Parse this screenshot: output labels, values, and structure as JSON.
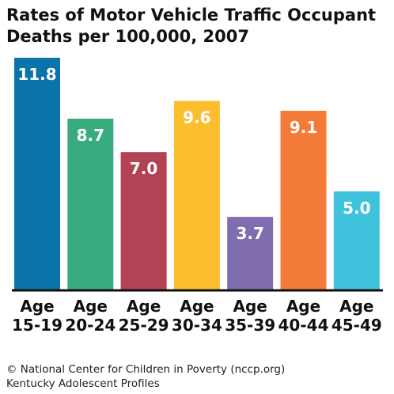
{
  "chart_data": {
    "type": "bar",
    "title_lines": [
      "Rates of Motor Vehicle Traffic Occupant",
      "Deaths per 100,000, 2007"
    ],
    "categories": [
      {
        "line1": "Age",
        "line2": "15-19"
      },
      {
        "line1": "Age",
        "line2": "20-24"
      },
      {
        "line1": "Age",
        "line2": "25-29"
      },
      {
        "line1": "Age",
        "line2": "30-34"
      },
      {
        "line1": "Age",
        "line2": "35-39"
      },
      {
        "line1": "Age",
        "line2": "40-44"
      },
      {
        "line1": "Age",
        "line2": "45-49"
      }
    ],
    "values": [
      11.8,
      8.7,
      7.0,
      9.6,
      3.7,
      9.1,
      5.0
    ],
    "value_labels": [
      "11.8",
      "8.7",
      "7.0",
      "9.6",
      "3.7",
      "9.1",
      "5.0"
    ],
    "colors": [
      "#0a73a8",
      "#3aab7f",
      "#b34254",
      "#fbbe2e",
      "#7f6daf",
      "#f47a38",
      "#3fc3dd"
    ],
    "ylim": [
      0,
      11.8
    ],
    "xlabel": "",
    "ylabel": "",
    "grid": false,
    "legend": "none"
  },
  "footer": {
    "line1": "© National Center for Children in Poverty (nccp.org)",
    "line2": "Kentucky Adolescent Profiles"
  }
}
